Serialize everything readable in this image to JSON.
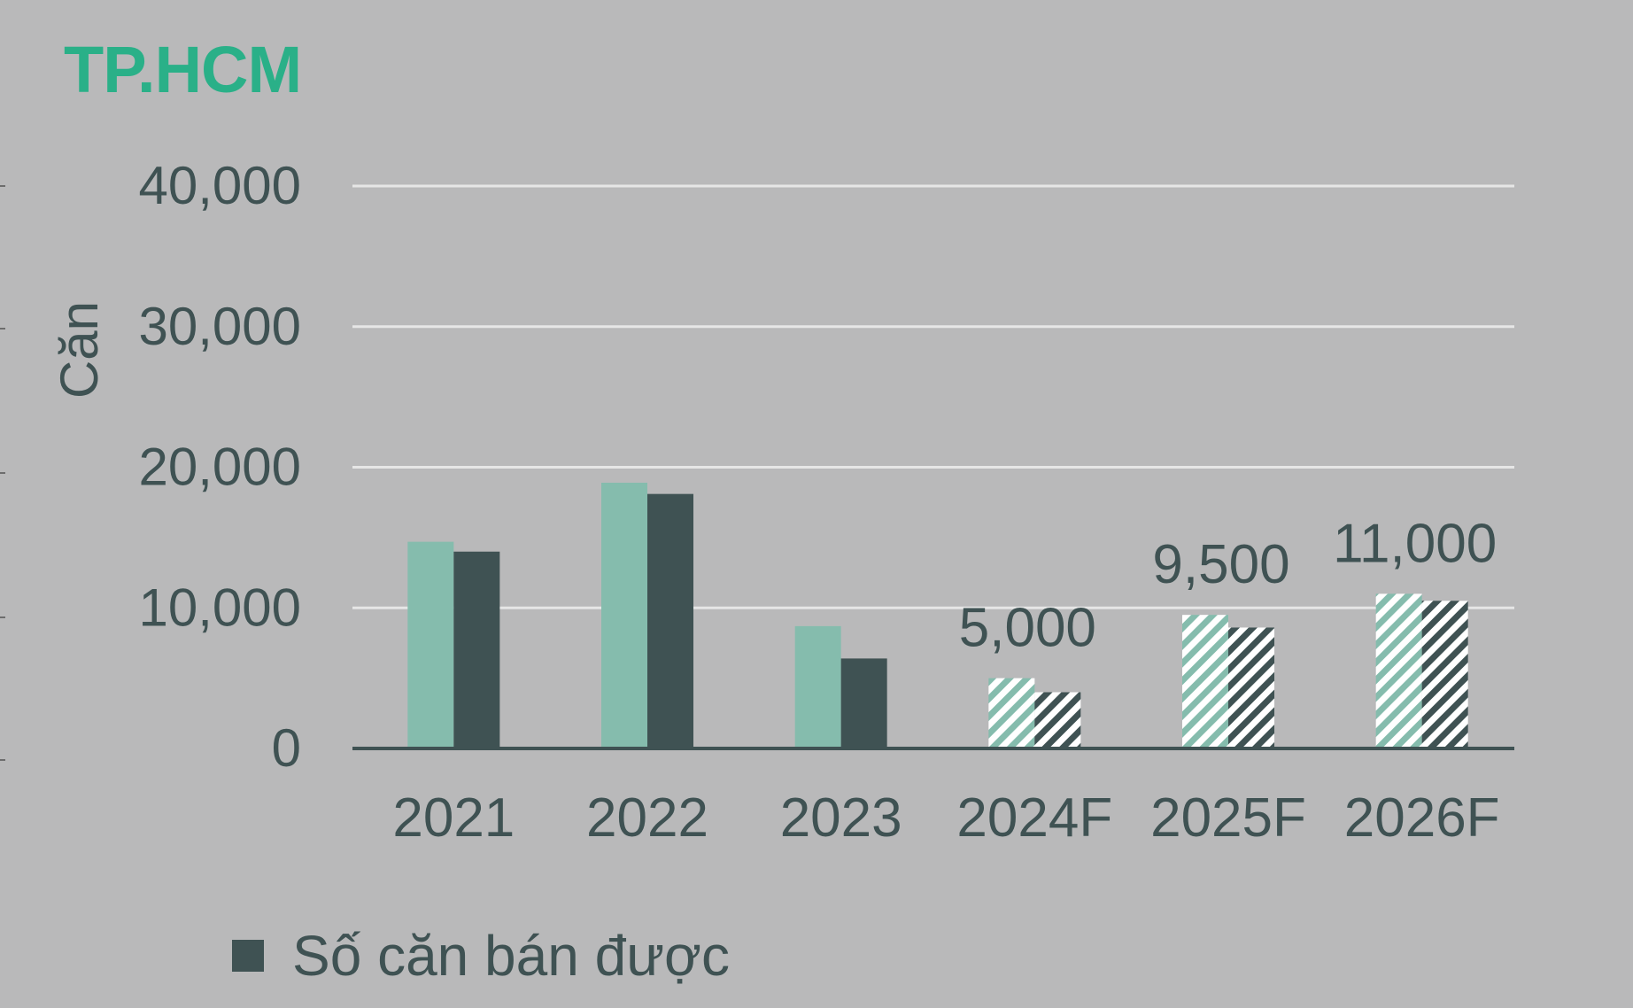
{
  "chart_data": {
    "type": "bar",
    "title": "TP.HCM",
    "ylabel": "Căn",
    "xlabel": "",
    "ylim": [
      0,
      40000
    ],
    "yticks": [
      "0",
      "10,000",
      "20,000",
      "30,000",
      "40,000"
    ],
    "ytick_values": [
      0,
      10000,
      20000,
      30000,
      40000
    ],
    "categories": [
      "2021",
      "2022",
      "2023",
      "2024F",
      "2025F",
      "2026F"
    ],
    "forecast": [
      false,
      false,
      false,
      true,
      true,
      true
    ],
    "series": [
      {
        "values": [
          14700,
          18900,
          8700,
          5000,
          9500,
          11000
        ],
        "color": "#85bcad"
      },
      {
        "name": "Số căn bán được",
        "values": [
          14000,
          18100,
          6400,
          4000,
          8600,
          10500
        ],
        "color": "#3f5253"
      }
    ],
    "data_labels": [
      "",
      "",
      "",
      "5,000",
      "9,500",
      "11,000"
    ],
    "legend": {
      "position": "bottom-left",
      "entries": [
        "Số căn bán được"
      ]
    },
    "grid": true,
    "gridline_color": "#e6e6e6",
    "axis_text_color": "#3f5253",
    "background_color": "#b9b9ba",
    "title_color": "#2ab088"
  }
}
